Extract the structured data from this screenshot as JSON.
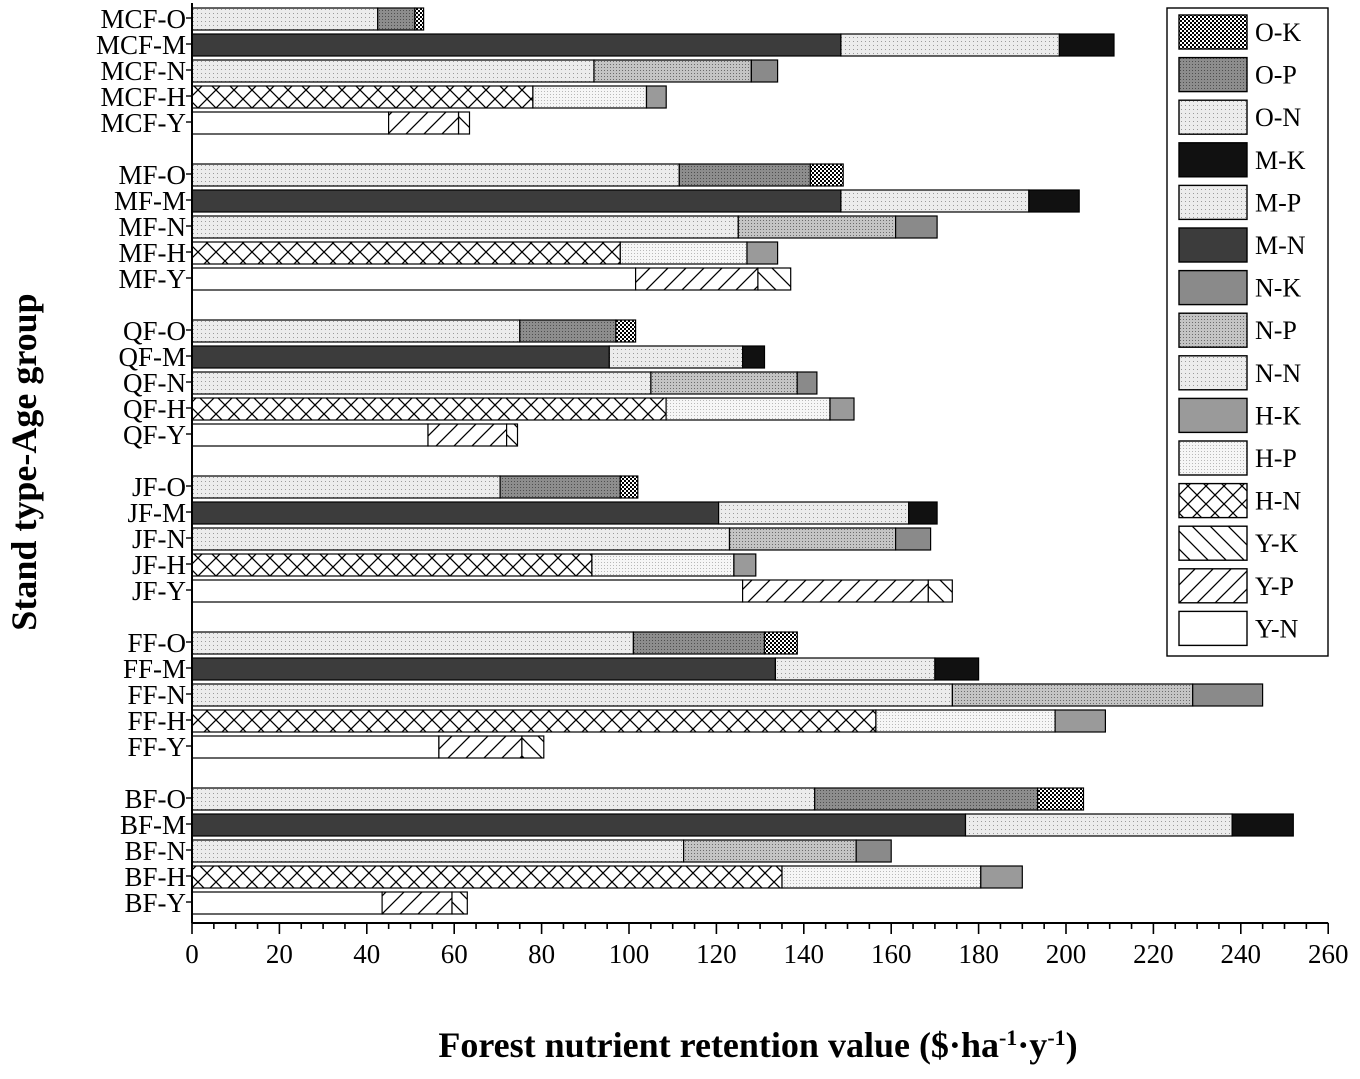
{
  "chart_data": {
    "type": "bar",
    "orientation": "horizontal",
    "stacked": true,
    "xlabel": "Forest nutrient retention value ($·ha-1·y-1)",
    "xlabel_parts": {
      "main": "Forest nutrient retention value ($·ha",
      "sup1": "-1",
      "mid": "·y",
      "sup2": "-1",
      "end": ")"
    },
    "ylabel": "Stand type-Age group",
    "xlim": [
      0,
      260
    ],
    "xticks": [
      "0",
      "20",
      "40",
      "60",
      "80",
      "100",
      "120",
      "140",
      "160",
      "180",
      "200",
      "220",
      "240",
      "260"
    ],
    "legend_position": "top-right",
    "legend": [
      "O-K",
      "O-P",
      "O-N",
      "M-K",
      "M-P",
      "M-N",
      "N-K",
      "N-P",
      "N-N",
      "H-K",
      "H-P",
      "H-N",
      "Y-K",
      "Y-P",
      "Y-N"
    ],
    "categories": [
      "MCF-O",
      "MCF-M",
      "MCF-N",
      "MCF-H",
      "MCF-Y",
      "MF-O",
      "MF-M",
      "MF-N",
      "MF-H",
      "MF-Y",
      "QF-O",
      "QF-M",
      "QF-N",
      "QF-H",
      "QF-Y",
      "JF-O",
      "JF-M",
      "JF-N",
      "JF-H",
      "JF-Y",
      "FF-O",
      "FF-M",
      "FF-N",
      "FF-H",
      "FF-Y",
      "BF-O",
      "BF-M",
      "BF-N",
      "BF-H",
      "BF-Y"
    ],
    "segments": [
      [
        "O-N",
        "O-P",
        "O-K"
      ],
      [
        "M-N",
        "M-P",
        "M-K"
      ],
      [
        "N-N",
        "N-P",
        "N-K"
      ],
      [
        "H-N",
        "H-P",
        "H-K"
      ],
      [
        "Y-N",
        "Y-P",
        "Y-K"
      ],
      [
        "O-N",
        "O-P",
        "O-K"
      ],
      [
        "M-N",
        "M-P",
        "M-K"
      ],
      [
        "N-N",
        "N-P",
        "N-K"
      ],
      [
        "H-N",
        "H-P",
        "H-K"
      ],
      [
        "Y-N",
        "Y-P",
        "Y-K"
      ],
      [
        "O-N",
        "O-P",
        "O-K"
      ],
      [
        "M-N",
        "M-P",
        "M-K"
      ],
      [
        "N-N",
        "N-P",
        "N-K"
      ],
      [
        "H-N",
        "H-P",
        "H-K"
      ],
      [
        "Y-N",
        "Y-P",
        "Y-K"
      ],
      [
        "O-N",
        "O-P",
        "O-K"
      ],
      [
        "M-N",
        "M-P",
        "M-K"
      ],
      [
        "N-N",
        "N-P",
        "N-K"
      ],
      [
        "H-N",
        "H-P",
        "H-K"
      ],
      [
        "Y-N",
        "Y-P",
        "Y-K"
      ],
      [
        "O-N",
        "O-P",
        "O-K"
      ],
      [
        "M-N",
        "M-P",
        "M-K"
      ],
      [
        "N-N",
        "N-P",
        "N-K"
      ],
      [
        "H-N",
        "H-P",
        "H-K"
      ],
      [
        "Y-N",
        "Y-P",
        "Y-K"
      ],
      [
        "O-N",
        "O-P",
        "O-K"
      ],
      [
        "M-N",
        "M-P",
        "M-K"
      ],
      [
        "N-N",
        "N-P",
        "N-K"
      ],
      [
        "H-N",
        "H-P",
        "H-K"
      ],
      [
        "Y-N",
        "Y-P",
        "Y-K"
      ]
    ],
    "values": [
      [
        42.5,
        8.5,
        2
      ],
      [
        148.5,
        50,
        12.5
      ],
      [
        92,
        36,
        6
      ],
      [
        78,
        26,
        4.5
      ],
      [
        45,
        16,
        2.5
      ],
      [
        111.5,
        30,
        7.5
      ],
      [
        148.5,
        43,
        11.5
      ],
      [
        125,
        36,
        9.5
      ],
      [
        98,
        29,
        7
      ],
      [
        101.5,
        28,
        7.5
      ],
      [
        75,
        22,
        4.5
      ],
      [
        95.5,
        30.5,
        5
      ],
      [
        105,
        33.5,
        4.5
      ],
      [
        108.5,
        37.5,
        5.5
      ],
      [
        54,
        18,
        2.5
      ],
      [
        70.5,
        27.5,
        4
      ],
      [
        120.5,
        43.5,
        6.5
      ],
      [
        123,
        38,
        8
      ],
      [
        91.5,
        32.5,
        5
      ],
      [
        126,
        42.5,
        5.5
      ],
      [
        101,
        30,
        7.5
      ],
      [
        133.5,
        36.5,
        10
      ],
      [
        174,
        55,
        16
      ],
      [
        156.5,
        41,
        11.5
      ],
      [
        56.5,
        19,
        5
      ],
      [
        142.5,
        51,
        10.5
      ],
      [
        177,
        61,
        14
      ],
      [
        112.5,
        39.5,
        8
      ],
      [
        135,
        45.5,
        9.5
      ],
      [
        43.5,
        16,
        3.5
      ]
    ]
  }
}
